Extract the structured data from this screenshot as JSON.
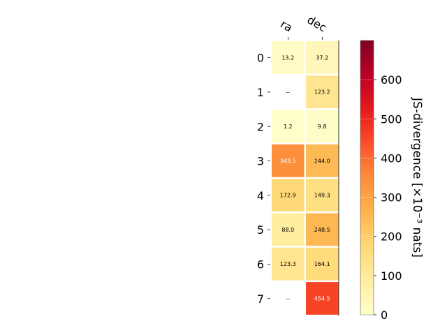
{
  "chart_data": {
    "type": "heatmap",
    "columns": [
      "ra",
      "dec"
    ],
    "rows": [
      "0",
      "1",
      "2",
      "3",
      "4",
      "5",
      "6",
      "7"
    ],
    "values": [
      [
        13.2,
        37.2
      ],
      [
        null,
        123.2
      ],
      [
        1.2,
        9.8
      ],
      [
        343.5,
        244.0
      ],
      [
        172.9,
        149.3
      ],
      [
        88.0,
        248.5
      ],
      [
        123.3,
        164.1
      ],
      [
        null,
        454.5
      ]
    ],
    "cell_labels": [
      [
        "13.2",
        "37.2"
      ],
      [
        "--",
        "123.2"
      ],
      [
        "1.2",
        "9.8"
      ],
      [
        "343.5",
        "244.0"
      ],
      [
        "172.9",
        "149.3"
      ],
      [
        "88.0",
        "248.5"
      ],
      [
        "123.3",
        "164.1"
      ],
      [
        "--",
        "454.5"
      ]
    ],
    "colorbar": {
      "label": "JS-divergence [×10⁻³ nats]",
      "range": [
        0,
        700
      ],
      "ticks": [
        0,
        100,
        200,
        300,
        400,
        500,
        600
      ],
      "colormap": "YlOrRd"
    },
    "grid": false
  }
}
